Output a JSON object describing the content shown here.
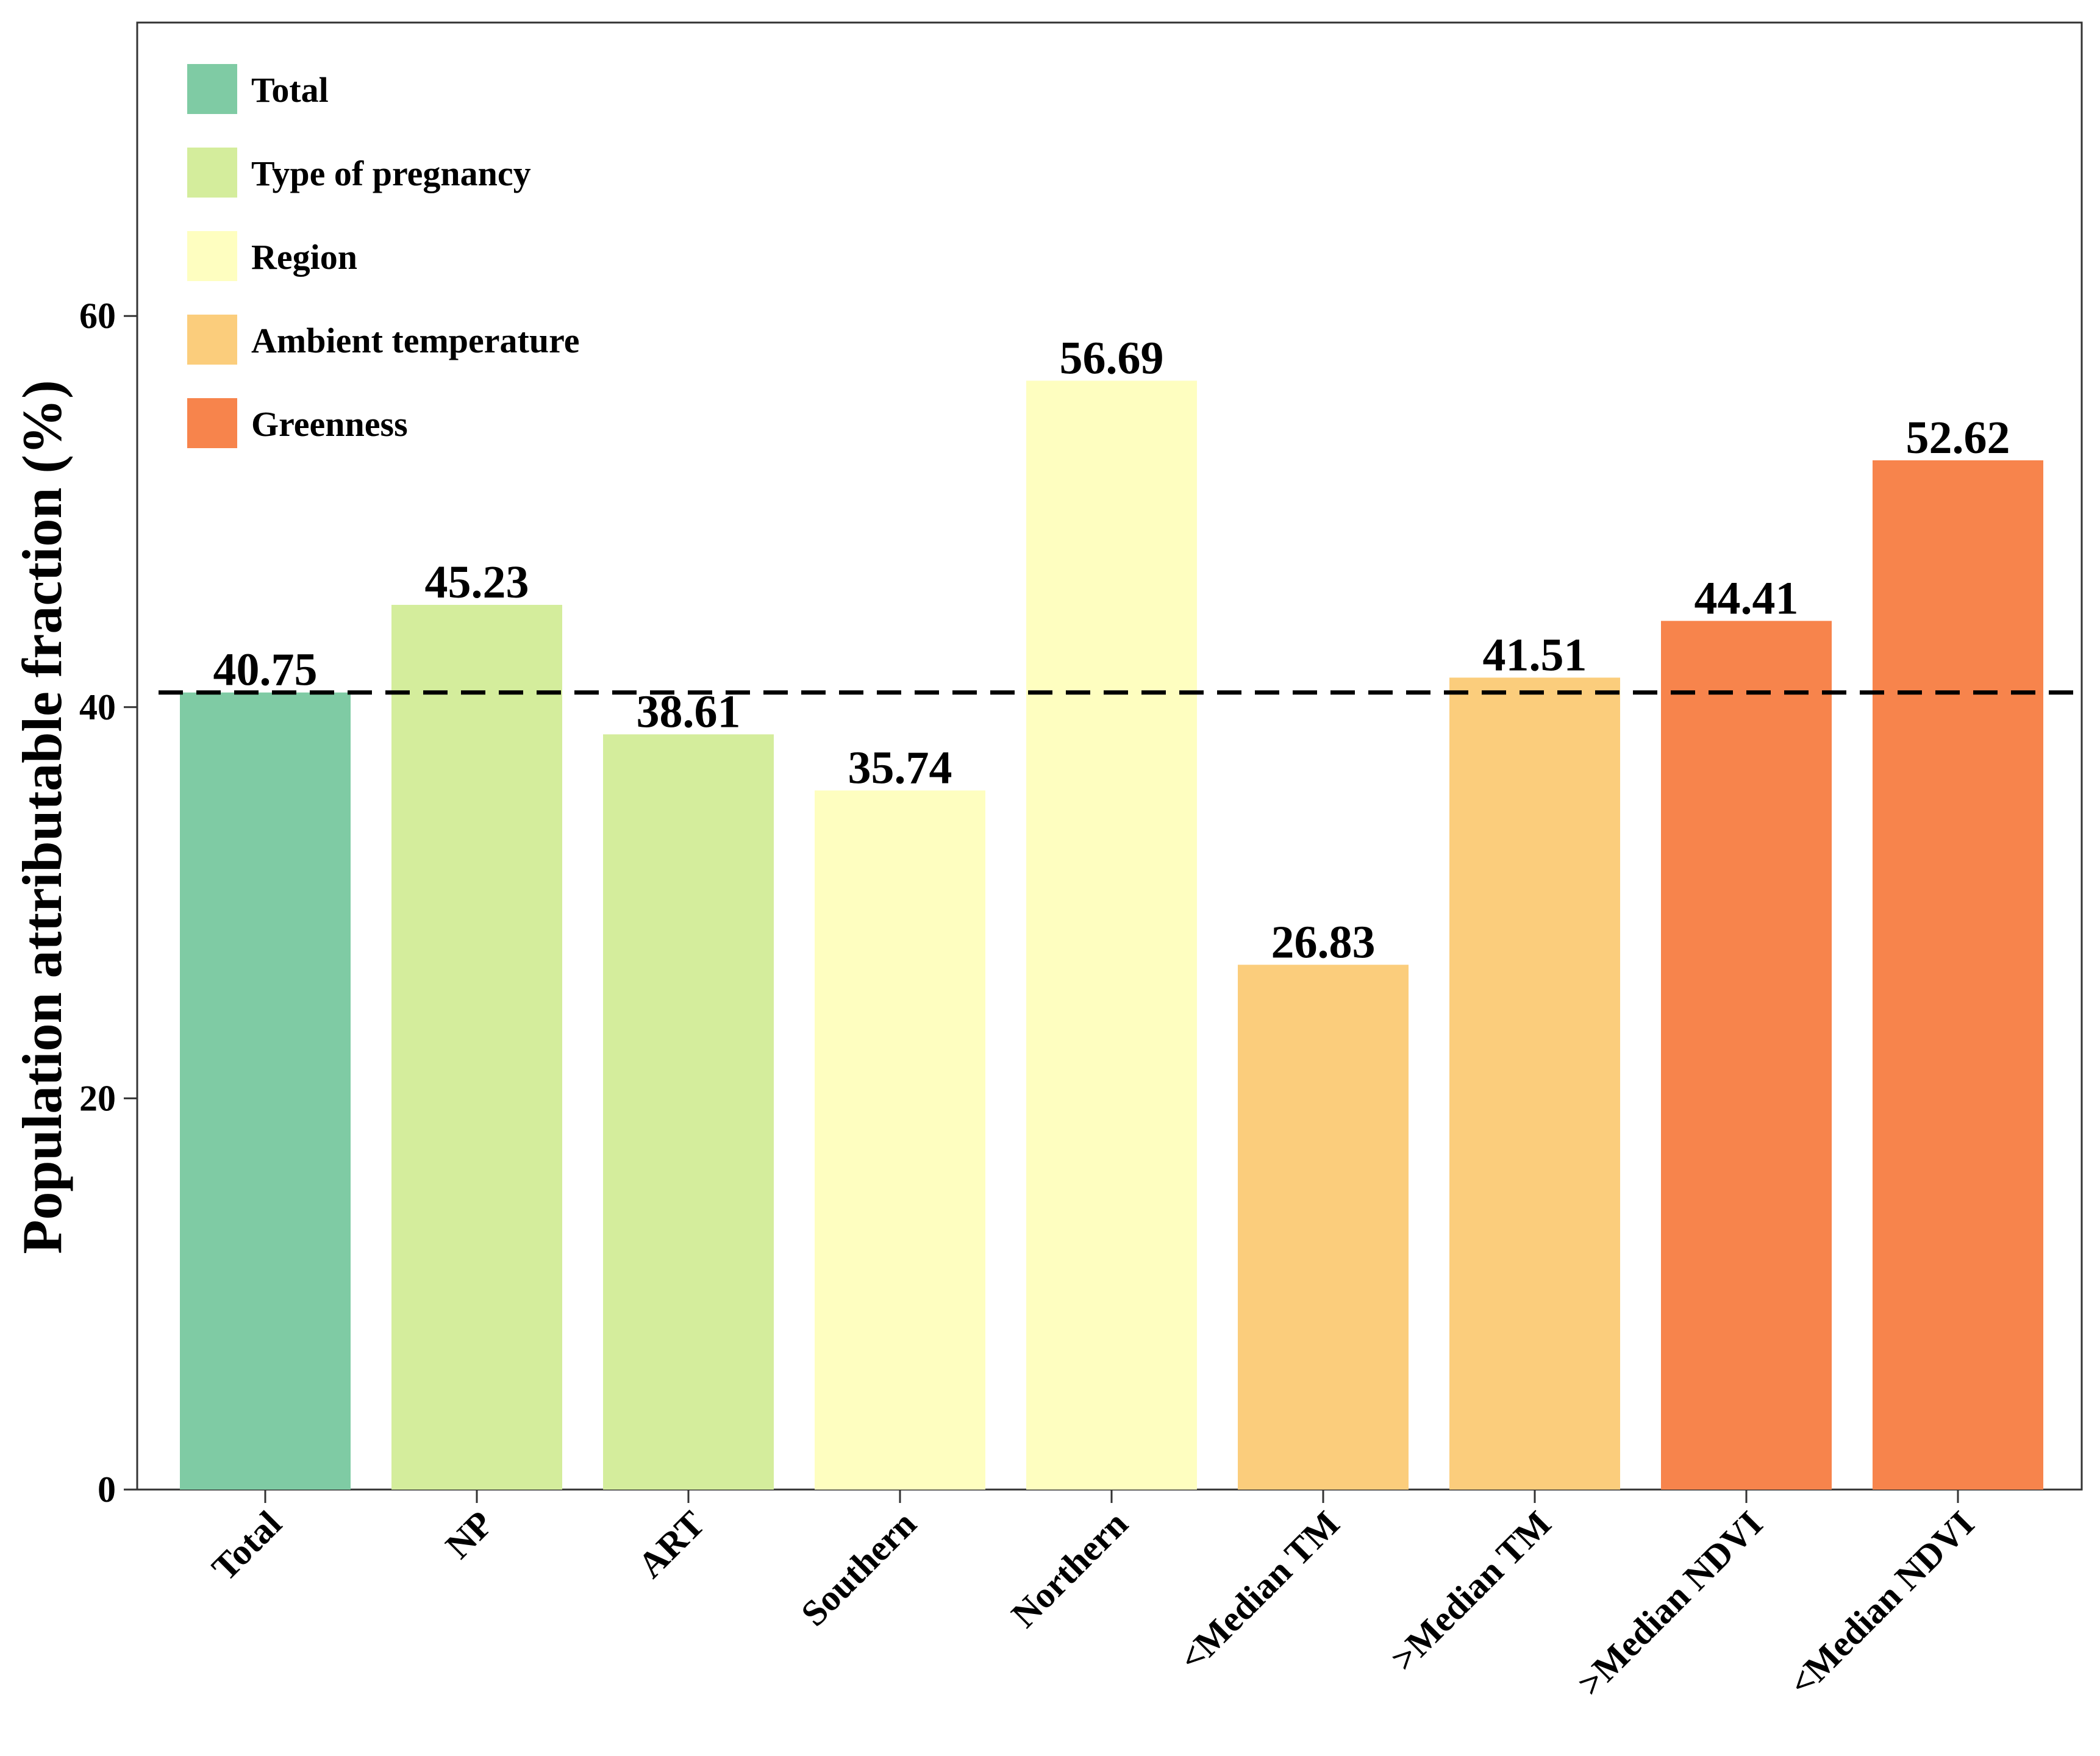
{
  "chart_data": {
    "type": "bar",
    "title": "",
    "xlabel": "",
    "ylabel": "Population attributable fraction (%)",
    "ylim": [
      0,
      75
    ],
    "yticks": [
      0,
      20,
      40,
      60
    ],
    "grid": false,
    "legend_position": "top-left",
    "reference_line": {
      "value": 40.75,
      "style": "dashed"
    },
    "categories": [
      "Total",
      "NP",
      "ART",
      "Southern",
      "Northern",
      "<Median TM",
      ">Median TM",
      ">Median NDVI",
      "<Median NDVI"
    ],
    "values": [
      40.75,
      45.23,
      38.61,
      35.74,
      56.69,
      26.83,
      41.51,
      44.41,
      52.62
    ],
    "value_labels": [
      "40.75",
      "45.23",
      "38.61",
      "35.74",
      "56.69",
      "26.83",
      "41.51",
      "44.41",
      "52.62"
    ],
    "bar_groups": [
      "Total",
      "Type of pregnancy",
      "Type of pregnancy",
      "Region",
      "Region",
      "Ambient temperature",
      "Ambient temperature",
      "Greenness",
      "Greenness"
    ],
    "legend": [
      {
        "label": "Total",
        "color": "#7fcba4"
      },
      {
        "label": "Type of pregnancy",
        "color": "#d4ed9c"
      },
      {
        "label": "Region",
        "color": "#fefec0"
      },
      {
        "label": "Ambient temperature",
        "color": "#fbcd7c"
      },
      {
        "label": "Greenness",
        "color": "#f7844c"
      }
    ]
  }
}
